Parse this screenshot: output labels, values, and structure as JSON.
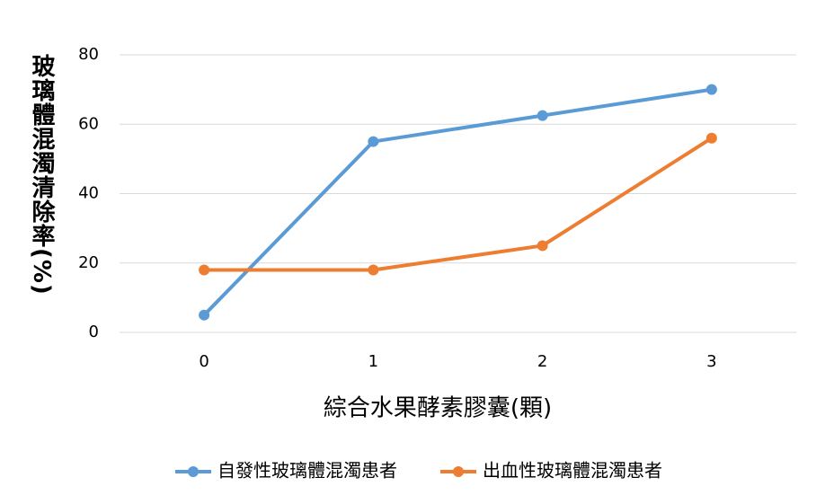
{
  "chart_data": {
    "type": "line",
    "y_label": "玻璃體混濁清除率(%)",
    "x_label": "綜合水果酵素膠囊(顆)",
    "categories": [
      "0",
      "1",
      "2",
      "3"
    ],
    "series": [
      {
        "name": "自發性玻璃體混濁患者",
        "color": "#5b9bd5",
        "values": [
          5,
          55,
          62.5,
          70
        ]
      },
      {
        "name": "出血性玻璃體混濁患者",
        "color": "#ed7d31",
        "values": [
          18,
          18,
          25,
          56
        ]
      }
    ],
    "ylim": [
      0,
      80
    ],
    "yticks": [
      0,
      20,
      40,
      60,
      80
    ],
    "grid": true,
    "legend": "bottom"
  }
}
